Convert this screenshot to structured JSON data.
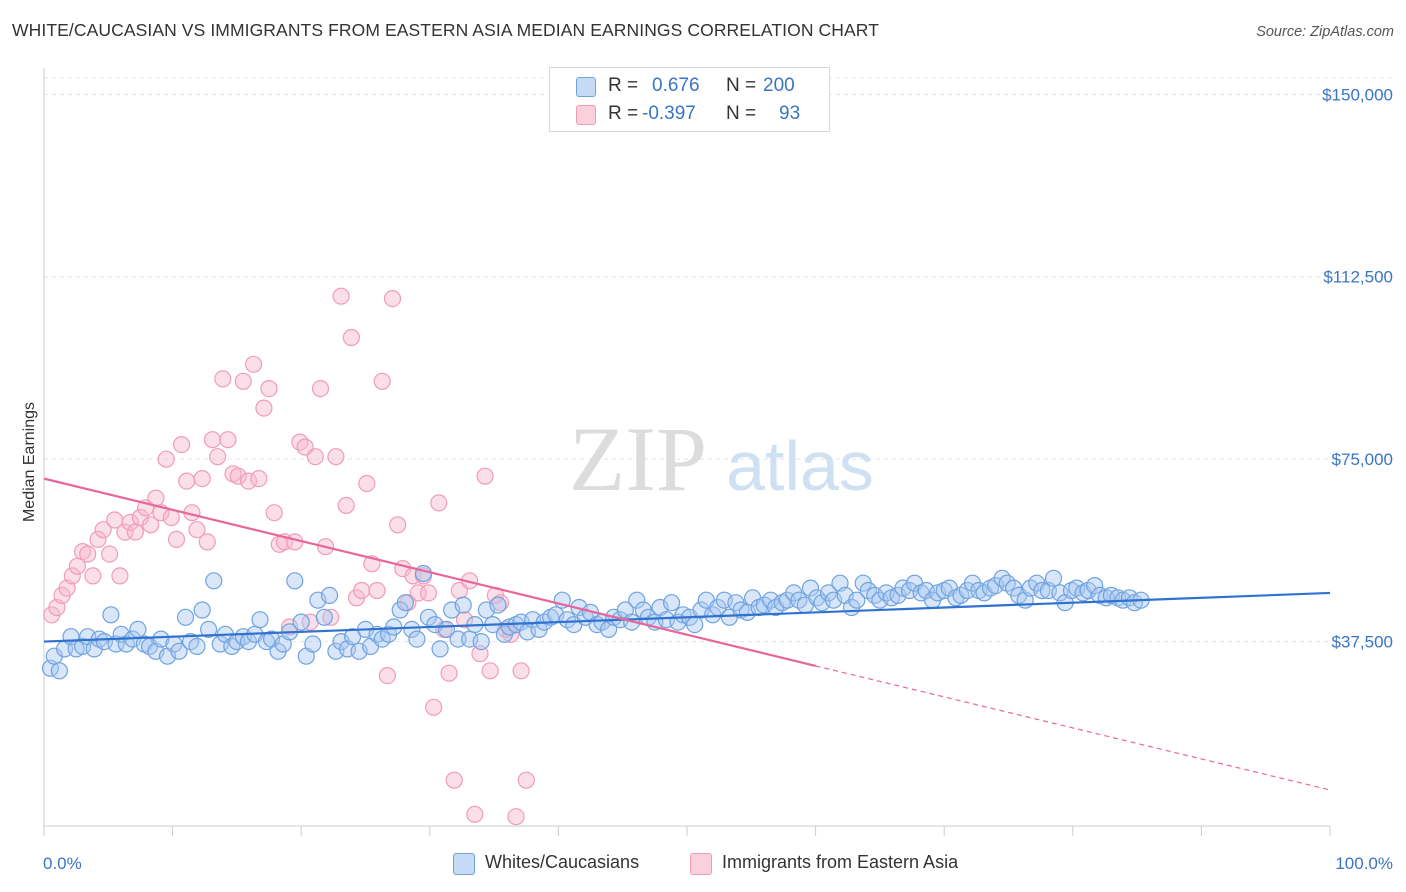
{
  "title": "WHITE/CAUCASIAN VS IMMIGRANTS FROM EASTERN ASIA MEDIAN EARNINGS CORRELATION CHART",
  "source": "Source: ZipAtlas.com",
  "watermark": {
    "zip": "ZIP",
    "atlas": "atlas"
  },
  "legend": {
    "rows": [
      {
        "r_label": "R =",
        "r_value": "0.676",
        "n_label": "N =",
        "n_value": "200",
        "color": "#a9c8f0"
      },
      {
        "r_label": "R =",
        "r_value": "-0.397",
        "n_label": "N =",
        "n_value": "93",
        "color": "#f7b8cb"
      }
    ]
  },
  "bottom_legend": [
    {
      "label": "Whites/Caucasians",
      "color": "#a9c8f0"
    },
    {
      "label": "Immigrants from Eastern Asia",
      "color": "#f7b8cb"
    }
  ],
  "chart_data": {
    "type": "scatter",
    "title": "WHITE/CAUCASIAN VS IMMIGRANTS FROM EASTERN ASIA MEDIAN EARNINGS CORRELATION CHART",
    "xlabel": "",
    "ylabel": "Median Earnings",
    "xlim": [
      0,
      100
    ],
    "ylim": [
      0,
      155000
    ],
    "x_tick_labels": [
      "0.0%",
      "100.0%"
    ],
    "y_ticks": [
      37500,
      75000,
      112500,
      150000
    ],
    "y_tick_labels": [
      "$37,500",
      "$75,000",
      "$112,500",
      "$150,000"
    ],
    "grid": "horizontal dashed",
    "legend_position": "top-center",
    "colors": {
      "blue": "#6fa3e0",
      "blue_line": "#2f72d0",
      "pink": "#f19cb6",
      "pink_line": "#e8679a"
    },
    "series": [
      {
        "name": "Whites/Caucasians",
        "r": 0.676,
        "n": 200,
        "trend": {
          "x": [
            0,
            100
          ],
          "y": [
            37500,
            47500
          ]
        },
        "points": [
          [
            0.5,
            32000
          ],
          [
            0.8,
            34500
          ],
          [
            1.2,
            31500
          ],
          [
            1.6,
            36000
          ],
          [
            2.1,
            38500
          ],
          [
            2.5,
            36000
          ],
          [
            3.0,
            36500
          ],
          [
            3.4,
            38500
          ],
          [
            3.9,
            36000
          ],
          [
            4.3,
            38000
          ],
          [
            4.7,
            37500
          ],
          [
            5.2,
            43000
          ],
          [
            5.6,
            37000
          ],
          [
            6.0,
            39000
          ],
          [
            6.4,
            37000
          ],
          [
            6.9,
            38000
          ],
          [
            7.3,
            40000
          ],
          [
            7.8,
            37000
          ],
          [
            8.2,
            36500
          ],
          [
            8.7,
            35500
          ],
          [
            9.1,
            38000
          ],
          [
            9.6,
            34500
          ],
          [
            10.1,
            37000
          ],
          [
            10.5,
            35500
          ],
          [
            11.0,
            42500
          ],
          [
            11.4,
            37500
          ],
          [
            11.9,
            36500
          ],
          [
            12.3,
            44000
          ],
          [
            12.8,
            40000
          ],
          [
            13.2,
            50000
          ],
          [
            13.7,
            37000
          ],
          [
            14.1,
            39000
          ],
          [
            14.6,
            36500
          ],
          [
            15.0,
            37500
          ],
          [
            15.5,
            38500
          ],
          [
            15.9,
            37500
          ],
          [
            16.4,
            39000
          ],
          [
            16.8,
            42000
          ],
          [
            17.3,
            37500
          ],
          [
            17.7,
            38000
          ],
          [
            18.2,
            35500
          ],
          [
            18.6,
            37000
          ],
          [
            19.1,
            39500
          ],
          [
            19.5,
            50000
          ],
          [
            20.0,
            41500
          ],
          [
            20.4,
            34500
          ],
          [
            20.9,
            37000
          ],
          [
            21.3,
            46000
          ],
          [
            21.8,
            42500
          ],
          [
            22.2,
            47000
          ],
          [
            22.7,
            35500
          ],
          [
            23.1,
            37500
          ],
          [
            23.6,
            36000
          ],
          [
            24.0,
            38500
          ],
          [
            24.5,
            35500
          ],
          [
            25.0,
            40000
          ],
          [
            25.4,
            36500
          ],
          [
            25.9,
            39000
          ],
          [
            26.3,
            38000
          ],
          [
            26.8,
            39000
          ],
          [
            27.2,
            40500
          ],
          [
            27.7,
            44000
          ],
          [
            28.1,
            45500
          ],
          [
            28.6,
            40000
          ],
          [
            29.0,
            38000
          ],
          [
            29.5,
            51500
          ],
          [
            29.9,
            42500
          ],
          [
            30.4,
            41000
          ],
          [
            30.8,
            36000
          ],
          [
            31.3,
            40000
          ],
          [
            31.7,
            44000
          ],
          [
            32.2,
            38000
          ],
          [
            32.6,
            45000
          ],
          [
            33.1,
            38000
          ],
          [
            33.5,
            41000
          ],
          [
            34.0,
            37500
          ],
          [
            34.4,
            44000
          ],
          [
            34.9,
            41000
          ],
          [
            35.3,
            45000
          ],
          [
            35.8,
            39000
          ],
          [
            36.2,
            40500
          ],
          [
            36.7,
            41000
          ],
          [
            37.1,
            41500
          ],
          [
            37.6,
            39500
          ],
          [
            38.0,
            42000
          ],
          [
            38.5,
            40000
          ],
          [
            38.9,
            41500
          ],
          [
            39.4,
            42500
          ],
          [
            39.8,
            43000
          ],
          [
            40.3,
            46000
          ],
          [
            40.7,
            42000
          ],
          [
            41.2,
            41000
          ],
          [
            41.6,
            44500
          ],
          [
            42.1,
            42500
          ],
          [
            42.5,
            43500
          ],
          [
            43.0,
            41000
          ],
          [
            43.4,
            41500
          ],
          [
            43.9,
            40000
          ],
          [
            44.3,
            42500
          ],
          [
            44.8,
            42000
          ],
          [
            45.2,
            44000
          ],
          [
            45.7,
            41500
          ],
          [
            46.1,
            46000
          ],
          [
            46.6,
            44000
          ],
          [
            47.0,
            42500
          ],
          [
            47.5,
            41500
          ],
          [
            47.9,
            44500
          ],
          [
            48.4,
            42000
          ],
          [
            48.8,
            45500
          ],
          [
            49.3,
            41500
          ],
          [
            49.7,
            43000
          ],
          [
            50.2,
            42500
          ],
          [
            50.6,
            41000
          ],
          [
            51.1,
            44000
          ],
          [
            51.5,
            46000
          ],
          [
            52.0,
            43000
          ],
          [
            52.4,
            44500
          ],
          [
            52.9,
            46000
          ],
          [
            53.3,
            42500
          ],
          [
            53.8,
            45500
          ],
          [
            54.2,
            44000
          ],
          [
            54.7,
            43500
          ],
          [
            55.1,
            46500
          ],
          [
            55.6,
            44500
          ],
          [
            56.0,
            45000
          ],
          [
            56.5,
            46000
          ],
          [
            56.9,
            44500
          ],
          [
            57.4,
            45500
          ],
          [
            57.8,
            46000
          ],
          [
            58.3,
            47500
          ],
          [
            58.7,
            46000
          ],
          [
            59.2,
            45000
          ],
          [
            59.6,
            48500
          ],
          [
            60.1,
            46500
          ],
          [
            60.5,
            45500
          ],
          [
            61.0,
            47500
          ],
          [
            61.4,
            46000
          ],
          [
            61.9,
            49500
          ],
          [
            62.3,
            47000
          ],
          [
            62.8,
            44500
          ],
          [
            63.2,
            46000
          ],
          [
            63.7,
            49500
          ],
          [
            64.1,
            48000
          ],
          [
            64.6,
            47000
          ],
          [
            65.0,
            46000
          ],
          [
            65.5,
            47500
          ],
          [
            65.9,
            46500
          ],
          [
            66.4,
            47000
          ],
          [
            66.8,
            48500
          ],
          [
            67.3,
            48000
          ],
          [
            67.7,
            49500
          ],
          [
            68.2,
            47500
          ],
          [
            68.6,
            48000
          ],
          [
            69.1,
            46000
          ],
          [
            69.5,
            47500
          ],
          [
            70.0,
            48000
          ],
          [
            70.4,
            48500
          ],
          [
            70.9,
            46500
          ],
          [
            71.3,
            47000
          ],
          [
            71.8,
            48000
          ],
          [
            72.2,
            49500
          ],
          [
            72.7,
            48000
          ],
          [
            73.1,
            47500
          ],
          [
            73.6,
            48500
          ],
          [
            74.0,
            49000
          ],
          [
            74.5,
            50500
          ],
          [
            74.9,
            49500
          ],
          [
            75.4,
            48500
          ],
          [
            75.8,
            47000
          ],
          [
            76.3,
            46000
          ],
          [
            76.7,
            48500
          ],
          [
            77.2,
            49500
          ],
          [
            77.6,
            48000
          ],
          [
            78.1,
            48000
          ],
          [
            78.5,
            50500
          ],
          [
            79.0,
            47500
          ],
          [
            79.4,
            45500
          ],
          [
            79.9,
            48000
          ],
          [
            80.3,
            48500
          ],
          [
            80.8,
            47500
          ],
          [
            81.2,
            48000
          ],
          [
            81.7,
            49000
          ],
          [
            82.1,
            47000
          ],
          [
            82.6,
            46500
          ],
          [
            83.0,
            47000
          ],
          [
            83.5,
            46500
          ],
          [
            83.9,
            46000
          ],
          [
            84.4,
            46500
          ],
          [
            84.8,
            45500
          ],
          [
            85.3,
            46000
          ]
        ]
      },
      {
        "name": "Immigrants from Eastern Asia",
        "r": -0.397,
        "n": 93,
        "trend": {
          "x": [
            0,
            60
          ],
          "y": [
            71000,
            32500
          ],
          "dashed_x": [
            60,
            100
          ],
          "dashed_y": [
            32500,
            7000
          ]
        },
        "points": [
          [
            0.6,
            43000
          ],
          [
            1.0,
            44500
          ],
          [
            1.4,
            47000
          ],
          [
            1.8,
            48500
          ],
          [
            2.2,
            51000
          ],
          [
            2.6,
            53000
          ],
          [
            3.0,
            56000
          ],
          [
            3.4,
            55500
          ],
          [
            3.8,
            51000
          ],
          [
            4.2,
            58500
          ],
          [
            4.6,
            60500
          ],
          [
            5.1,
            55500
          ],
          [
            5.5,
            62500
          ],
          [
            5.9,
            51000
          ],
          [
            6.3,
            60000
          ],
          [
            6.7,
            62000
          ],
          [
            7.1,
            60000
          ],
          [
            7.5,
            63000
          ],
          [
            7.9,
            65000
          ],
          [
            8.3,
            61500
          ],
          [
            8.7,
            67000
          ],
          [
            9.1,
            64000
          ],
          [
            9.5,
            75000
          ],
          [
            9.9,
            63000
          ],
          [
            10.3,
            58500
          ],
          [
            10.7,
            78000
          ],
          [
            11.1,
            70500
          ],
          [
            11.5,
            64000
          ],
          [
            11.9,
            60500
          ],
          [
            12.3,
            71000
          ],
          [
            12.7,
            58000
          ],
          [
            13.1,
            79000
          ],
          [
            13.5,
            75500
          ],
          [
            13.9,
            91500
          ],
          [
            14.3,
            79000
          ],
          [
            14.7,
            72000
          ],
          [
            15.1,
            71500
          ],
          [
            15.5,
            91000
          ],
          [
            15.9,
            70500
          ],
          [
            16.3,
            94500
          ],
          [
            16.7,
            71000
          ],
          [
            17.1,
            85500
          ],
          [
            17.5,
            89500
          ],
          [
            17.9,
            64000
          ],
          [
            18.3,
            57500
          ],
          [
            18.7,
            58000
          ],
          [
            19.1,
            40500
          ],
          [
            19.5,
            58000
          ],
          [
            19.9,
            78500
          ],
          [
            20.3,
            77500
          ],
          [
            20.7,
            41500
          ],
          [
            21.1,
            75500
          ],
          [
            21.5,
            89500
          ],
          [
            21.9,
            57000
          ],
          [
            22.3,
            42500
          ],
          [
            22.7,
            75500
          ],
          [
            23.1,
            108500
          ],
          [
            23.5,
            65500
          ],
          [
            23.9,
            100000
          ],
          [
            24.3,
            46500
          ],
          [
            24.7,
            48000
          ],
          [
            25.1,
            70000
          ],
          [
            25.5,
            53500
          ],
          [
            25.9,
            48000
          ],
          [
            26.3,
            91000
          ],
          [
            26.7,
            30500
          ],
          [
            27.1,
            108000
          ],
          [
            27.5,
            61500
          ],
          [
            27.9,
            52500
          ],
          [
            28.3,
            45500
          ],
          [
            28.7,
            51000
          ],
          [
            29.1,
            47500
          ],
          [
            29.5,
            51000
          ],
          [
            29.9,
            47500
          ],
          [
            30.3,
            24000
          ],
          [
            30.7,
            66000
          ],
          [
            31.1,
            40000
          ],
          [
            31.5,
            31000
          ],
          [
            31.9,
            9000
          ],
          [
            32.3,
            48000
          ],
          [
            32.7,
            42000
          ],
          [
            33.1,
            50000
          ],
          [
            33.5,
            2000
          ],
          [
            33.9,
            35000
          ],
          [
            34.3,
            71500
          ],
          [
            34.7,
            31500
          ],
          [
            35.1,
            47000
          ],
          [
            35.5,
            45500
          ],
          [
            35.9,
            40000
          ],
          [
            36.3,
            39000
          ],
          [
            36.7,
            1500
          ],
          [
            37.1,
            31500
          ],
          [
            37.5,
            9000
          ]
        ]
      }
    ]
  }
}
